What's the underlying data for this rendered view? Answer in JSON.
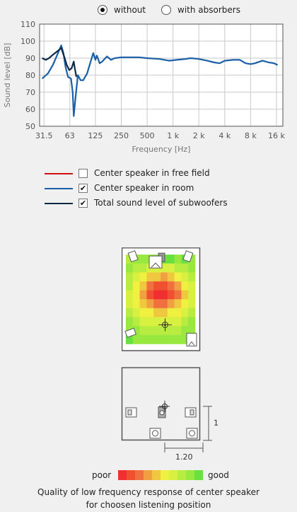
{
  "mode_toggle": {
    "options": [
      {
        "label": "without",
        "selected": true
      },
      {
        "label": "with absorbers",
        "selected": false
      }
    ]
  },
  "chart_data": {
    "type": "line",
    "xlabel": "Frequency [Hz]",
    "ylabel": "Sound level [dB]",
    "x_scale": "log",
    "xlim": [
      28,
      19000
    ],
    "ylim": [
      50,
      110
    ],
    "x_ticks": [
      31.5,
      63,
      125,
      250,
      500,
      1000,
      2000,
      4000,
      8000,
      16000
    ],
    "x_tick_labels": [
      "31.5",
      "63",
      "125",
      "250",
      "500",
      "1 k",
      "2 k",
      "4 k",
      "8 k",
      "16 k"
    ],
    "y_ticks": [
      50,
      60,
      70,
      80,
      90,
      100,
      110
    ],
    "grid": true,
    "series": [
      {
        "name": "Center speaker in free field",
        "color": "#d01010",
        "visible": false,
        "points": []
      },
      {
        "name": "Center speaker in room",
        "color": "#1a5fa8",
        "visible": true,
        "points": [
          [
            30,
            78
          ],
          [
            35,
            81
          ],
          [
            40,
            86
          ],
          [
            45,
            92
          ],
          [
            50,
            97.5
          ],
          [
            53,
            93
          ],
          [
            56,
            85
          ],
          [
            60,
            79
          ],
          [
            65,
            78
          ],
          [
            68,
            70
          ],
          [
            70,
            56
          ],
          [
            73,
            66
          ],
          [
            78,
            80
          ],
          [
            84,
            77
          ],
          [
            90,
            77
          ],
          [
            100,
            81
          ],
          [
            110,
            88
          ],
          [
            118,
            93
          ],
          [
            125,
            89
          ],
          [
            130,
            91.5
          ],
          [
            140,
            87
          ],
          [
            150,
            88
          ],
          [
            170,
            91
          ],
          [
            190,
            89
          ],
          [
            210,
            90
          ],
          [
            250,
            90.5
          ],
          [
            300,
            90.5
          ],
          [
            400,
            90.5
          ],
          [
            500,
            90
          ],
          [
            700,
            89.5
          ],
          [
            900,
            88.5
          ],
          [
            1100,
            89
          ],
          [
            1400,
            89.5
          ],
          [
            1600,
            90
          ],
          [
            2000,
            89.5
          ],
          [
            2500,
            88.5
          ],
          [
            3000,
            87.5
          ],
          [
            3500,
            87
          ],
          [
            4000,
            88.5
          ],
          [
            5000,
            89
          ],
          [
            6000,
            89
          ],
          [
            7000,
            87
          ],
          [
            8000,
            86.5
          ],
          [
            9000,
            87
          ],
          [
            11000,
            88.5
          ],
          [
            13000,
            87.5
          ],
          [
            15000,
            87
          ],
          [
            16500,
            86
          ]
        ]
      },
      {
        "name": "Total sound level of subwoofers",
        "color": "#0e2a47",
        "visible": true,
        "points": [
          [
            30,
            90
          ],
          [
            33,
            89
          ],
          [
            36,
            90
          ],
          [
            40,
            92
          ],
          [
            45,
            94
          ],
          [
            50,
            96
          ],
          [
            54,
            91
          ],
          [
            58,
            86
          ],
          [
            62,
            83
          ],
          [
            66,
            84
          ],
          [
            70,
            88
          ],
          [
            72,
            84
          ],
          [
            75,
            79
          ]
        ]
      }
    ]
  },
  "legend": {
    "items": [
      {
        "label": "Center speaker in free field",
        "color": "#d01010",
        "checked": false
      },
      {
        "label": "Center speaker in room",
        "color": "#1a5fa8",
        "checked": true
      },
      {
        "label": "Total sound level of subwoofers",
        "color": "#0e2a47",
        "checked": true
      }
    ]
  },
  "heatmap": {
    "grid": [
      [
        7,
        8,
        8,
        8,
        8,
        9,
        9,
        8,
        9,
        8
      ],
      [
        8,
        7,
        7,
        6,
        6,
        6,
        6,
        7,
        7,
        8
      ],
      [
        7,
        6,
        5,
        4,
        4,
        3,
        4,
        5,
        6,
        7
      ],
      [
        7,
        5,
        4,
        2,
        1,
        1,
        2,
        3,
        5,
        6
      ],
      [
        6,
        5,
        3,
        1,
        0,
        0,
        1,
        2,
        4,
        6
      ],
      [
        6,
        5,
        4,
        3,
        2,
        2,
        3,
        4,
        5,
        6
      ],
      [
        7,
        6,
        5,
        5,
        4,
        4,
        5,
        5,
        6,
        7
      ],
      [
        8,
        7,
        6,
        6,
        6,
        6,
        6,
        6,
        7,
        8
      ],
      [
        8,
        8,
        7,
        7,
        7,
        7,
        7,
        7,
        8,
        8
      ],
      [
        9,
        8,
        8,
        8,
        8,
        8,
        8,
        8,
        8,
        9
      ]
    ],
    "scale_colors": [
      "#f03030",
      "#f05030",
      "#f07040",
      "#f0a040",
      "#f0c840",
      "#f0f040",
      "#d8f040",
      "#b8ec40",
      "#98e840",
      "#68e040"
    ]
  },
  "dimensions": {
    "depth": "1.15",
    "width": "1.20"
  },
  "quality_legend": {
    "poor": "poor",
    "good": "good"
  },
  "caption": {
    "line1": "Quality of low frequency response of center speaker",
    "line2": "for choosen listening position"
  }
}
